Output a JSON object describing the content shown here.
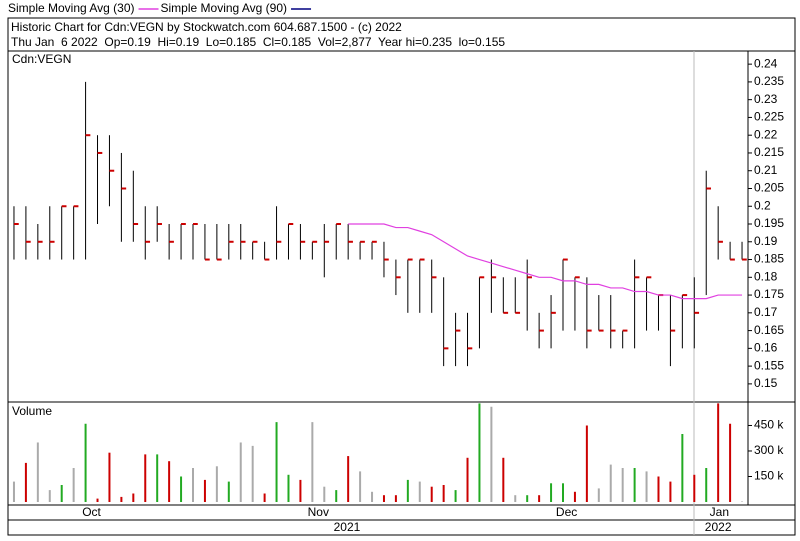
{
  "chart_data": {
    "type": "ohlc",
    "title": "Historic Chart for Cdn:VEGN by Stockwatch.com 604.687.1500 - (c) 2022",
    "subtitle": "Thu Jan  6 2022  Op=0.19  Hi=0.19  Lo=0.185  Cl=0.185  Vol=2,877  Year hi=0.235  lo=0.155",
    "symbol": "Cdn:VEGN",
    "bar_color": "#000000",
    "close_color": "#cc0000",
    "high": [
      0.2,
      0.2,
      0.195,
      0.2,
      0.2,
      0.2,
      0.235,
      0.22,
      0.22,
      0.215,
      0.21,
      0.2,
      0.2,
      0.195,
      0.195,
      0.195,
      0.195,
      0.195,
      0.195,
      0.195,
      0.19,
      0.19,
      0.2,
      0.195,
      0.195,
      0.19,
      0.195,
      0.195,
      0.195,
      0.19,
      0.19,
      0.19,
      0.185,
      0.185,
      0.185,
      0.185,
      0.18,
      0.17,
      0.17,
      0.18,
      0.185,
      0.18,
      0.18,
      0.185,
      0.17,
      0.175,
      0.185,
      0.18,
      0.18,
      0.175,
      0.175,
      0.165,
      0.185,
      0.18,
      0.175,
      0.175,
      0.175,
      0.18,
      0.21,
      0.2,
      0.19,
      0.19
    ],
    "low": [
      0.185,
      0.185,
      0.185,
      0.185,
      0.185,
      0.185,
      0.185,
      0.195,
      0.2,
      0.19,
      0.19,
      0.185,
      0.19,
      0.185,
      0.185,
      0.185,
      0.185,
      0.185,
      0.185,
      0.185,
      0.185,
      0.185,
      0.185,
      0.185,
      0.185,
      0.185,
      0.18,
      0.185,
      0.185,
      0.185,
      0.185,
      0.18,
      0.175,
      0.17,
      0.17,
      0.17,
      0.155,
      0.155,
      0.155,
      0.16,
      0.17,
      0.17,
      0.17,
      0.165,
      0.16,
      0.16,
      0.165,
      0.165,
      0.16,
      0.165,
      0.16,
      0.16,
      0.16,
      0.165,
      0.165,
      0.155,
      0.16,
      0.16,
      0.175,
      0.185,
      0.185,
      0.185
    ],
    "close": [
      0.195,
      0.19,
      0.19,
      0.19,
      0.2,
      0.2,
      0.22,
      0.215,
      0.21,
      0.205,
      0.195,
      0.19,
      0.195,
      0.19,
      0.195,
      0.195,
      0.185,
      0.185,
      0.19,
      0.19,
      0.19,
      0.185,
      0.19,
      0.195,
      0.19,
      0.19,
      0.19,
      0.195,
      0.19,
      0.19,
      0.19,
      0.185,
      0.18,
      0.185,
      0.185,
      0.18,
      0.16,
      0.165,
      0.16,
      0.18,
      0.18,
      0.17,
      0.17,
      0.18,
      0.165,
      0.17,
      0.185,
      0.18,
      0.165,
      0.165,
      0.165,
      0.165,
      0.18,
      0.18,
      0.175,
      0.165,
      0.175,
      0.17,
      0.205,
      0.19,
      0.185,
      0.185
    ],
    "series": [
      {
        "name": "Simple Moving Avg (30)",
        "color": "#e040e0",
        "values": [
          null,
          null,
          null,
          null,
          null,
          null,
          null,
          null,
          null,
          null,
          null,
          null,
          null,
          null,
          null,
          null,
          null,
          null,
          null,
          null,
          null,
          null,
          null,
          null,
          null,
          null,
          null,
          null,
          0.195,
          0.195,
          0.195,
          0.195,
          0.194,
          0.194,
          0.193,
          0.192,
          0.19,
          0.188,
          0.186,
          0.185,
          0.184,
          0.183,
          0.182,
          0.181,
          0.18,
          0.18,
          0.179,
          0.179,
          0.178,
          0.178,
          0.177,
          0.177,
          0.176,
          0.176,
          0.175,
          0.175,
          0.174,
          0.174,
          0.174,
          0.175,
          0.175,
          0.175
        ]
      },
      {
        "name": "Simple Moving Avg (90)",
        "color": "#000080"
      }
    ],
    "ylim": [
      0.1449,
      0.2437
    ],
    "yticks": [
      0.15,
      0.155,
      0.16,
      0.165,
      0.17,
      0.175,
      0.18,
      0.185,
      0.19,
      0.195,
      0.2,
      0.205,
      0.21,
      0.215,
      0.22,
      0.225,
      0.23,
      0.235,
      0.24
    ],
    "volume": {
      "name": "Volume",
      "values": [
        120000,
        230000,
        350000,
        70000,
        100000,
        200000,
        460000,
        20000,
        290000,
        30000,
        50000,
        280000,
        280000,
        240000,
        150000,
        200000,
        130000,
        210000,
        120000,
        350000,
        330000,
        50000,
        470000,
        160000,
        130000,
        470000,
        90000,
        70000,
        270000,
        180000,
        60000,
        40000,
        40000,
        130000,
        120000,
        90000,
        100000,
        70000,
        260000,
        580000,
        560000,
        260000,
        40000,
        40000,
        40000,
        110000,
        110000,
        60000,
        450000,
        80000,
        220000,
        200000,
        200000,
        180000,
        150000,
        120000,
        400000,
        160000,
        200000,
        580000,
        460000,
        2877
      ],
      "up_color": "#22aa22",
      "down_color": "#cc0000",
      "flat_color": "#aaaaaa",
      "ylim": [
        0,
        588000
      ],
      "yticks": [
        {
          "value": 150000,
          "label": "150 k"
        },
        {
          "value": 300000,
          "label": "300 k"
        },
        {
          "value": 450000,
          "label": "450 k"
        }
      ]
    },
    "xlim": [
      0,
      62
    ],
    "xticks": [
      {
        "value": 7,
        "label": "Oct"
      },
      {
        "value": 26,
        "label": "Nov"
      },
      {
        "value": 46.8,
        "label": "Dec"
      },
      {
        "value": 59.6,
        "label": "Jan"
      }
    ],
    "year_ticks": [
      {
        "value": 28.4,
        "label": "2021"
      },
      {
        "value": 59.5,
        "label": "2022"
      }
    ]
  }
}
